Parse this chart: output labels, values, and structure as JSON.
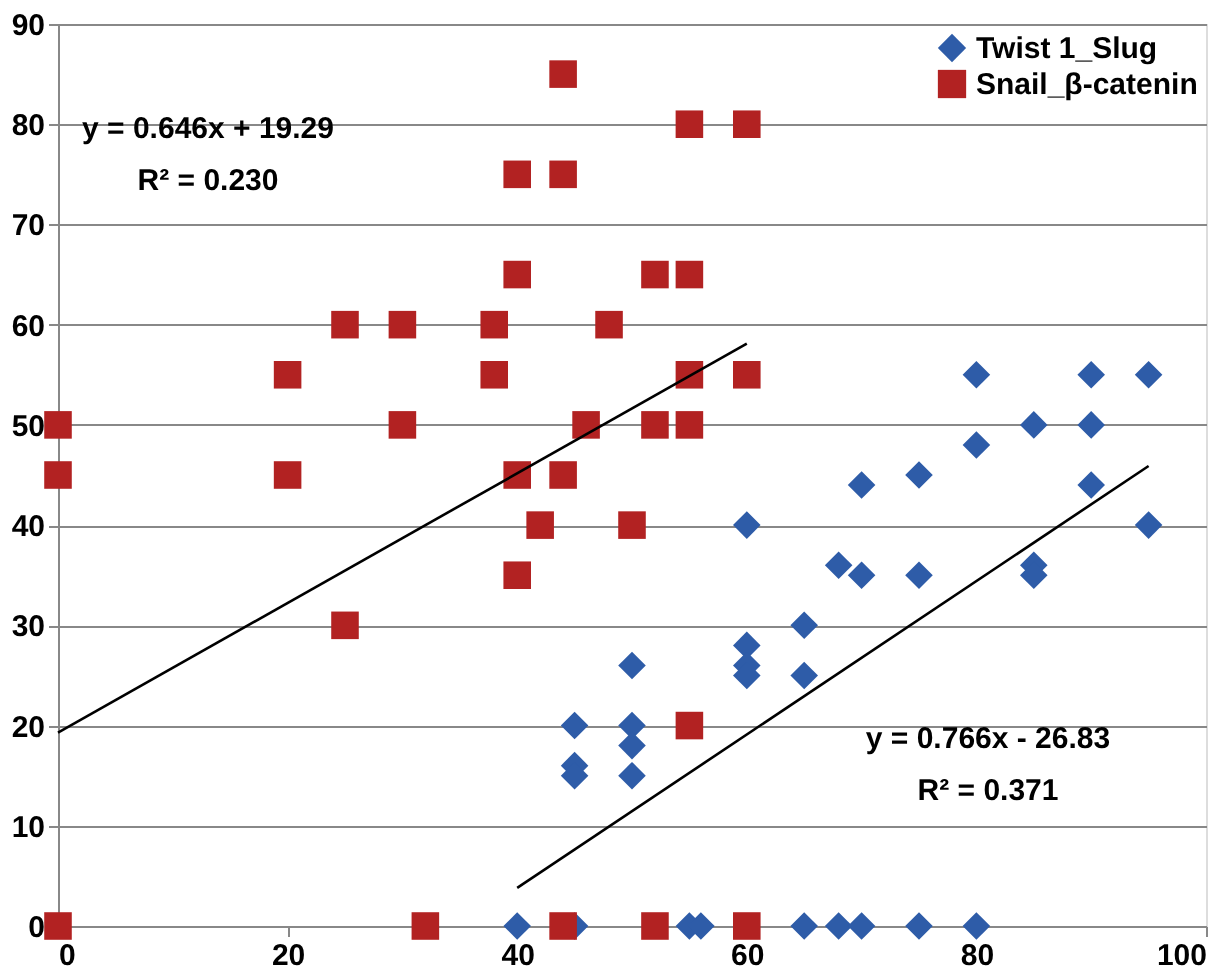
{
  "chart_data": {
    "type": "scatter",
    "xlim": [
      0,
      100
    ],
    "xticks": [
      0,
      20,
      40,
      60,
      80,
      100
    ],
    "ylim": [
      0,
      90
    ],
    "yticks": [
      0,
      10,
      20,
      30,
      40,
      50,
      60,
      70,
      80,
      90
    ],
    "grid": "y",
    "legend": "top right",
    "series": [
      {
        "name": "Twist 1_Slug",
        "color": "#2e5ca8",
        "marker": "diamond",
        "x": [
          40,
          45,
          45,
          45,
          45,
          50,
          50,
          50,
          50,
          55,
          56,
          60,
          60,
          60,
          60,
          65,
          65,
          65,
          68,
          70,
          70,
          68,
          70,
          75,
          75,
          75,
          80,
          80,
          80,
          85,
          85,
          85,
          90,
          90,
          90,
          95,
          95
        ],
        "values": [
          0,
          20,
          16,
          15,
          0,
          26,
          20,
          18,
          15,
          0,
          0,
          40,
          28,
          26,
          25,
          30,
          25,
          0,
          36,
          35,
          44,
          0,
          0,
          45,
          35,
          0,
          55,
          48,
          0,
          50,
          36,
          35,
          55,
          50,
          44,
          55,
          40
        ]
      },
      {
        "name": "Snail_β-catenin",
        "color": "#b22222",
        "marker": "square",
        "x": [
          0,
          0,
          0,
          20,
          20,
          25,
          25,
          30,
          30,
          32,
          38,
          38,
          40,
          40,
          40,
          40,
          42,
          44,
          44,
          44,
          44,
          46,
          48,
          50,
          52,
          52,
          54,
          55,
          55,
          55,
          55,
          55,
          52,
          60,
          60,
          60
        ],
        "values": [
          50,
          45,
          0,
          55,
          45,
          60,
          30,
          60,
          50,
          0,
          60,
          55,
          75,
          65,
          45,
          35,
          40,
          85,
          75,
          45,
          0,
          50,
          60,
          40,
          65,
          50,
          null,
          65,
          80,
          55,
          50,
          20,
          0,
          80,
          55,
          0
        ]
      },
      {
        "type": "line",
        "color": "#000000",
        "line_style": "solid",
        "x": [
          0,
          60
        ],
        "values": [
          19.3,
          58.1
        ]
      },
      {
        "type": "line",
        "color": "#000000",
        "line_style": "solid",
        "x": [
          40,
          95
        ],
        "values": [
          3.8,
          45.9
        ]
      }
    ],
    "annotations": [
      "y = 0.646x + 19.29",
      "R² = 0.230",
      "y = 0.766x - 26.83",
      "R² = 0.371"
    ]
  }
}
